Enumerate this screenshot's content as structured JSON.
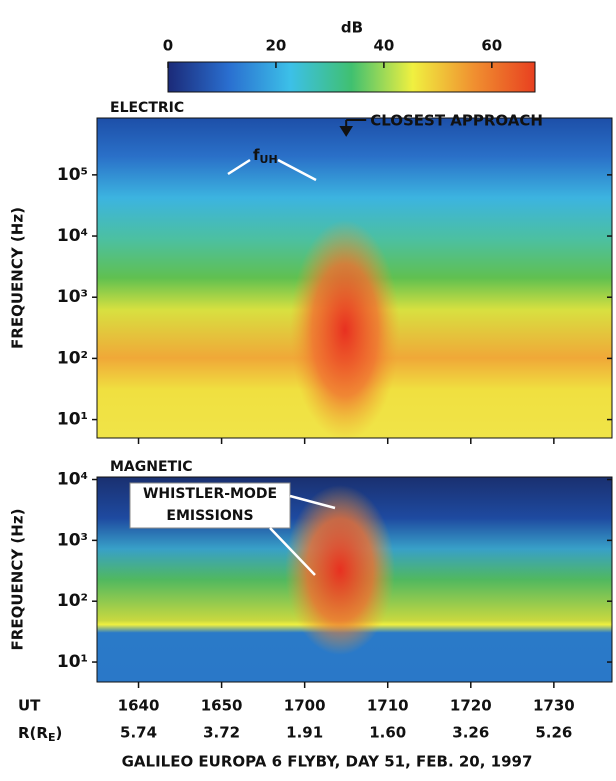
{
  "chart_data": {
    "type": "spectrogram",
    "title": "GALILEO  EUROPA 6 FLYBY,  DAY 51,  FEB. 20, 1997",
    "colorbar": {
      "label": "dB",
      "lim": [
        0,
        68
      ],
      "ticks": [
        0,
        20,
        40,
        60
      ],
      "colors": [
        "#1b2a78",
        "#2a6fd0",
        "#3cc0e8",
        "#40c070",
        "#f0f040",
        "#f09030",
        "#e84020"
      ]
    },
    "closest_approach": {
      "label": "CLOSEST APPROACH",
      "x": 1025
    },
    "xlim": [
      995,
      1057
    ],
    "xticks": [
      {
        "value": 1000,
        "label": "1640"
      },
      {
        "value": 1010,
        "label": "1650"
      },
      {
        "value": 1020,
        "label": "1700"
      },
      {
        "value": 1030,
        "label": "1710"
      },
      {
        "value": 1040,
        "label": "1720"
      },
      {
        "value": 1050,
        "label": "1730"
      }
    ],
    "x_row_label": "UT",
    "r_row_label": {
      "main": "R(R",
      "sub": "E",
      "end": ")"
    },
    "r_values": [
      "5.74",
      "3.72",
      "1.91",
      "1.60",
      "3.26",
      "5.26"
    ],
    "panels": [
      {
        "label": "ELECTRIC",
        "ylabel": "FREQUENCY (Hz)",
        "yscale": "log",
        "ylim": [
          5,
          850000
        ],
        "yticks": [
          {
            "value": 10,
            "label": "10¹"
          },
          {
            "value": 100,
            "label": "10²"
          },
          {
            "value": 1000,
            "label": "10³"
          },
          {
            "value": 10000,
            "label": "10⁴"
          },
          {
            "value": 100000,
            "label": "10⁵"
          }
        ],
        "annotation": {
          "main": "f",
          "sub": "UH"
        }
      },
      {
        "label": "MAGNETIC",
        "ylabel": "FREQUENCY (Hz)",
        "yscale": "log",
        "ylim": [
          4.7,
          11000
        ],
        "yticks": [
          {
            "value": 10,
            "label": "10¹"
          },
          {
            "value": 100,
            "label": "10²"
          },
          {
            "value": 1000,
            "label": "10³"
          },
          {
            "value": 10000,
            "label": "10⁴"
          }
        ],
        "annotation": {
          "lines": [
            "WHISTLER-MODE",
            "EMISSIONS"
          ]
        }
      }
    ]
  }
}
